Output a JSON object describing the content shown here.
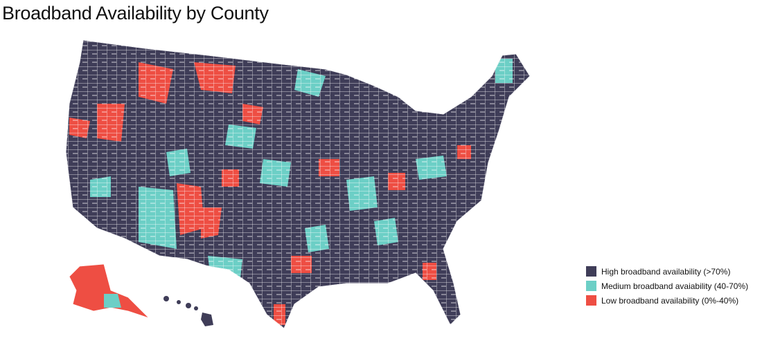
{
  "title": "Broadband Availability by County",
  "legend": [
    {
      "label": "High broadband availability (>70%)",
      "color": "#3f3d58"
    },
    {
      "label": "Medium broadband avaiability (40-70%)",
      "color": "#6ccfc6"
    },
    {
      "label": "Low broadband availability (0%-40%)",
      "color": "#ee4e43"
    }
  ]
}
